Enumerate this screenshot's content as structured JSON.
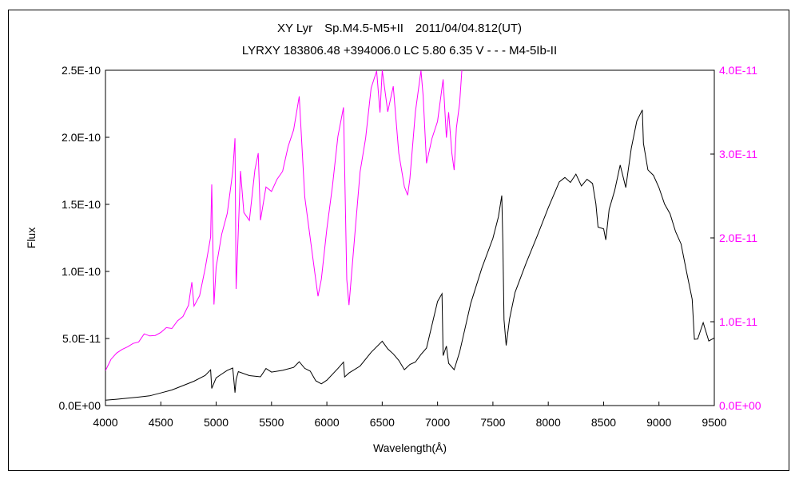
{
  "colors": {
    "primary": "#000000",
    "secondary": "#ff00ff"
  },
  "chart_data": {
    "type": "line",
    "title": "XY Lyr　Sp.M4.5-M5+II　2011/04/04.812(UT)",
    "subtitle": "LYRXY 183806.48 +394006.0 LC 5.80 6.35 V - - - M4-5Ib-II",
    "xlabel": "Wavelength(Å)",
    "ylabel": "Flux",
    "xlim": [
      4000,
      9500
    ],
    "ylim": [
      0,
      2.5e-10
    ],
    "y2lim": [
      0,
      4e-11
    ],
    "x_ticks": [
      "4000",
      "4500",
      "5000",
      "5500",
      "6000",
      "6500",
      "7000",
      "7500",
      "8000",
      "8500",
      "9000",
      "9500"
    ],
    "y_ticks": [
      "0.0E+00",
      "5.0E-11",
      "1.0E-10",
      "1.5E-10",
      "2.0E-10",
      "2.5E-10"
    ],
    "y2_ticks": [
      "0.0E+00",
      "1.0E-11",
      "2.0E-11",
      "3.0E-11",
      "4.0E-11"
    ],
    "grid": false,
    "series": [
      {
        "axis": "left",
        "color": "#000000",
        "x": [
          4000,
          4100,
          4200,
          4300,
          4400,
          4500,
          4600,
          4700,
          4800,
          4900,
          4950,
          4960,
          5000,
          5050,
          5100,
          5150,
          5170,
          5180,
          5200,
          5300,
          5400,
          5450,
          5500,
          5600,
          5700,
          5750,
          5800,
          5850,
          5900,
          5950,
          6000,
          6100,
          6150,
          6160,
          6200,
          6300,
          6400,
          6500,
          6550,
          6600,
          6650,
          6700,
          6750,
          6800,
          6850,
          6900,
          7000,
          7040,
          7050,
          7080,
          7100,
          7150,
          7200,
          7300,
          7400,
          7500,
          7550,
          7580,
          7590,
          7600,
          7620,
          7650,
          7700,
          7800,
          7900,
          8000,
          8100,
          8150,
          8200,
          8250,
          8300,
          8350,
          8400,
          8430,
          8450,
          8500,
          8520,
          8550,
          8600,
          8650,
          8700,
          8750,
          8800,
          8850,
          8860,
          8900,
          8950,
          9000,
          9050,
          9100,
          9150,
          9200,
          9250,
          9300,
          9320,
          9350,
          9400,
          9450,
          9500
        ],
        "y": [
          4e-12,
          5e-12,
          6e-12,
          7e-12,
          8e-12,
          1e-11,
          1.2e-11,
          1.5e-11,
          1.8e-11,
          2.2e-11,
          2.6e-11,
          1.2e-11,
          2e-11,
          2.3e-11,
          2.6e-11,
          2.8e-11,
          1e-11,
          2e-11,
          2.6e-11,
          2.3e-11,
          2.2e-11,
          2.8e-11,
          2.5e-11,
          2.6e-11,
          2.8e-11,
          3.2e-11,
          2.7e-11,
          2.5e-11,
          1.8e-11,
          1.6e-11,
          1.9e-11,
          2.8e-11,
          3.3e-11,
          2.2e-11,
          2.5e-11,
          3e-11,
          4e-11,
          4.8e-11,
          4.2e-11,
          3.8e-11,
          3.3e-11,
          2.6e-11,
          3e-11,
          3.2e-11,
          3.8e-11,
          4.3e-11,
          7.8e-11,
          8.4e-11,
          3.8e-11,
          4.5e-11,
          3.2e-11,
          2.7e-11,
          4e-11,
          7.6e-11,
          1.02e-10,
          1.24e-10,
          1.4e-10,
          1.56e-10,
          1.2e-10,
          6.4e-11,
          4.5e-11,
          6.5e-11,
          8.5e-11,
          1.07e-10,
          1.27e-10,
          1.48e-10,
          1.67e-10,
          1.7e-10,
          1.66e-10,
          1.72e-10,
          1.63e-10,
          1.68e-10,
          1.65e-10,
          1.5e-10,
          1.33e-10,
          1.32e-10,
          1.24e-10,
          1.47e-10,
          1.61e-10,
          1.8e-10,
          1.63e-10,
          1.92e-10,
          2.12e-10,
          2.2e-10,
          1.95e-10,
          1.75e-10,
          1.71e-10,
          1.62e-10,
          1.5e-10,
          1.43e-10,
          1.3e-10,
          1.21e-10,
          1e-10,
          8e-11,
          5e-11,
          5e-11,
          6.2e-11,
          4.8e-11,
          5e-11
        ]
      },
      {
        "axis": "right",
        "color": "#ff00ff",
        "x": [
          4000,
          4050,
          4100,
          4150,
          4200,
          4250,
          4300,
          4350,
          4400,
          4450,
          4500,
          4550,
          4600,
          4650,
          4700,
          4750,
          4780,
          4800,
          4850,
          4900,
          4950,
          4960,
          4980,
          5000,
          5050,
          5100,
          5150,
          5170,
          5180,
          5200,
          5220,
          5250,
          5300,
          5350,
          5380,
          5400,
          5450,
          5500,
          5550,
          5600,
          5650,
          5700,
          5750,
          5800,
          5850,
          5900,
          5920,
          5950,
          6000,
          6050,
          6100,
          6150,
          6180,
          6200,
          6250,
          6300,
          6350,
          6400,
          6450,
          6480,
          6500,
          6550,
          6600,
          6650,
          6700,
          6730,
          6750,
          6800,
          6850,
          6870,
          6900,
          6950,
          7000,
          7050,
          7080,
          7100,
          7130,
          7150,
          7170,
          7200,
          7220
        ],
        "y": [
          4.2e-12,
          5.5e-12,
          6.2e-12,
          6.6e-12,
          6.9e-12,
          7.3e-12,
          7.5e-12,
          8.5e-12,
          8.3e-12,
          8.4e-12,
          8.8e-12,
          9.4e-12,
          9.3e-12,
          1.02e-11,
          1.07e-11,
          1.2e-11,
          1.47e-11,
          1.18e-11,
          1.3e-11,
          1.62e-11,
          2e-11,
          2.63e-11,
          1.2e-11,
          1.65e-11,
          2.05e-11,
          2.3e-11,
          2.8e-11,
          3.2e-11,
          1.4e-11,
          2.1e-11,
          2.8e-11,
          2.3e-11,
          2.2e-11,
          2.8e-11,
          3e-11,
          2.2e-11,
          2.6e-11,
          2.55e-11,
          2.7e-11,
          2.8e-11,
          3.1e-11,
          3.3e-11,
          3.7e-11,
          2.5e-11,
          2e-11,
          1.5e-11,
          1.3e-11,
          1.5e-11,
          2.1e-11,
          2.6e-11,
          3.2e-11,
          3.55e-11,
          1.5e-11,
          1.2e-11,
          2e-11,
          2.8e-11,
          3.2e-11,
          3.8e-11,
          4e-11,
          3.5e-11,
          4e-11,
          3.5e-11,
          3.8e-11,
          3e-11,
          2.6e-11,
          2.5e-11,
          2.7e-11,
          3.5e-11,
          4e-11,
          3.7e-11,
          2.9e-11,
          3.2e-11,
          3.4e-11,
          3.9e-11,
          3.2e-11,
          3.5e-11,
          3e-11,
          2.8e-11,
          3.3e-11,
          3.6e-11,
          4e-11
        ]
      }
    ]
  }
}
